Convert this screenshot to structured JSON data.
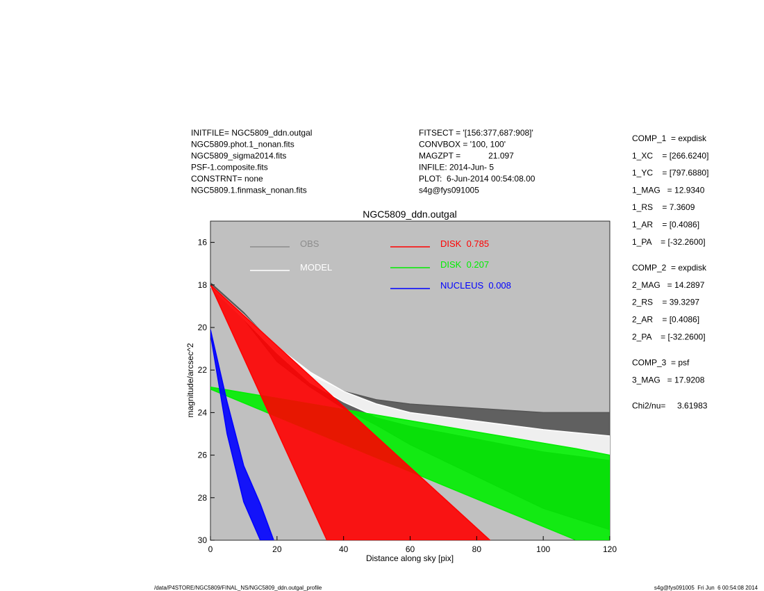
{
  "header": {
    "left": [
      "INITFILE= NGC5809_ddn.outgal",
      "NGC5809.phot.1_nonan.fits",
      "NGC5809_sigma2014.fits",
      "PSF-1.composite.fits",
      "CONSTRNT= none",
      "NGC5809.1.finmask_nonan.fits"
    ],
    "middle": [
      "FITSECT = '[156:377,687:908]'",
      "CONVBOX = '100, 100'",
      "MAGZPT =            21.097",
      "INFILE: 2014-Jun- 5",
      "PLOT:  6-Jun-2014 00:54:08.00",
      "s4g@fys091005"
    ],
    "right": [
      [
        "COMP_1  = expdisk",
        "1_XC    = [266.6240]",
        "1_YC    = [797.6880]",
        "1_MAG   = 12.9340",
        "1_RS    = 7.3609",
        "1_AR    = [0.4086]",
        "1_PA    = [-32.2600]"
      ],
      [
        "COMP_2  = expdisk",
        "2_MAG   = 14.2897",
        "2_RS    = 39.3297",
        "2_AR    = [0.4086]",
        "2_PA    = [-32.2600]"
      ],
      [
        "COMP_3  = psf",
        "3_MAG   = 17.9208"
      ],
      [
        "Chi2/nu=     3.61983"
      ]
    ]
  },
  "footer": {
    "left": "/data/P4STORE/NGC5809/FINAL_NS/NGC5809_ddn.outgal_profile",
    "right": "s4g@fys091005  Fri Jun  6 00:54:08 2014"
  },
  "chart_data": {
    "type": "band",
    "title": "NGC5809_ddn.outgal",
    "x_label": "Distance along sky [pix]",
    "y_label": "magnitude/arcsec^2",
    "xlim": [
      0,
      120
    ],
    "xticks": [
      0,
      20,
      40,
      60,
      80,
      100,
      120
    ],
    "ylim": [
      30,
      15
    ],
    "yticks": [
      16,
      18,
      20,
      22,
      24,
      26,
      28,
      30
    ],
    "background": "#c0c0c0",
    "series": [
      {
        "name": "OBS",
        "color": "#555555",
        "legend_color": "#8c8c8c",
        "x": [
          0,
          10,
          20,
          30,
          40,
          50,
          60,
          80,
          100,
          120
        ],
        "lower": [
          17.9,
          19.3,
          21.0,
          22.3,
          23.0,
          23.4,
          23.6,
          23.8,
          24.0,
          24.0
        ],
        "upper": [
          18.1,
          19.6,
          21.6,
          22.8,
          23.8,
          24.6,
          25.5,
          27.0,
          28.5,
          29.5
        ]
      },
      {
        "name": "MODEL",
        "color": "#ffffff",
        "legend_color": "#ffffff",
        "x": [
          0,
          10,
          20,
          30,
          40,
          50,
          60,
          80,
          100,
          120
        ],
        "lower": [
          18.0,
          19.4,
          20.9,
          22.1,
          23.0,
          23.6,
          24.0,
          24.4,
          24.8,
          25.1
        ],
        "upper": [
          18.1,
          19.6,
          21.2,
          22.6,
          23.5,
          24.2,
          24.6,
          25.2,
          25.8,
          26.2
        ]
      },
      {
        "name": "DISK  0.207",
        "color": "#00ee00",
        "legend_color": "#00ee00",
        "x": [
          0,
          110,
          120
        ],
        "lower": [
          22.8,
          25.7,
          26.0
        ],
        "upper": [
          22.9,
          30,
          30
        ]
      },
      {
        "name": "DISK  0.785",
        "color": "#ff0000",
        "legend_color": "#ff0000",
        "x": [
          0,
          35,
          84
        ],
        "lower": [
          18,
          23,
          30
        ],
        "upper": [
          18,
          30,
          30
        ]
      },
      {
        "name": "NUCLEUS  0.008",
        "color": "#0000ff",
        "legend_color": "#0000ff",
        "x": [
          0,
          5,
          10,
          15,
          19
        ],
        "lower": [
          20.1,
          23.5,
          26.5,
          28.3,
          30
        ],
        "upper": [
          20.3,
          25,
          28.2,
          30,
          30
        ]
      }
    ]
  }
}
